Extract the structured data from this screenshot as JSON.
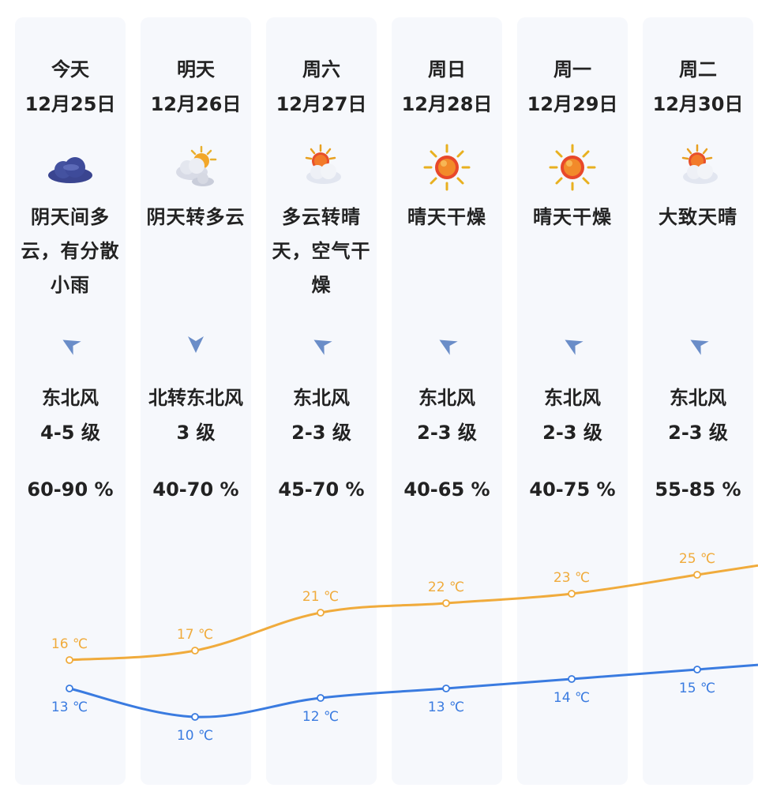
{
  "days": [
    {
      "name": "今天",
      "date": "12月25日",
      "icon": "overcast-cloud-icon",
      "condition": "阴天间多云，有分散小雨",
      "wind_icon": "wind-direction-arrow-icon",
      "wind_dir": "东北风",
      "wind_level": "4-5 级",
      "humidity": "60-90 %",
      "high_label": "16 ℃",
      "low_label": "13 ℃"
    },
    {
      "name": "明天",
      "date": "12月26日",
      "icon": "partly-cloudy-icon",
      "condition": "阴天转多云",
      "wind_icon": "wind-direction-arrow-icon",
      "wind_dir": "北转东北风",
      "wind_level": "3 级",
      "humidity": "40-70 %",
      "high_label": "17 ℃",
      "low_label": "10 ℃"
    },
    {
      "name": "周六",
      "date": "12月27日",
      "icon": "sun-behind-cloud-icon",
      "condition": "多云转晴天，空气干燥",
      "wind_icon": "wind-direction-arrow-icon",
      "wind_dir": "东北风",
      "wind_level": "2-3 级",
      "humidity": "45-70 %",
      "high_label": "21 ℃",
      "low_label": "12 ℃"
    },
    {
      "name": "周日",
      "date": "12月28日",
      "icon": "sunny-icon",
      "condition": "晴天干燥",
      "wind_icon": "wind-direction-arrow-icon",
      "wind_dir": "东北风",
      "wind_level": "2-3 级",
      "humidity": "40-65 %",
      "high_label": "22 ℃",
      "low_label": "13 ℃"
    },
    {
      "name": "周一",
      "date": "12月29日",
      "icon": "sunny-icon",
      "condition": "晴天干燥",
      "wind_icon": "wind-direction-arrow-icon",
      "wind_dir": "东北风",
      "wind_level": "2-3 级",
      "humidity": "40-75 %",
      "high_label": "23 ℃",
      "low_label": "14 ℃"
    },
    {
      "name": "周二",
      "date": "12月30日",
      "icon": "sun-behind-cloud-icon",
      "condition": "大致天晴",
      "wind_icon": "wind-direction-arrow-icon",
      "wind_dir": "东北风",
      "wind_level": "2-3 级",
      "humidity": "55-85 %",
      "high_label": "25 ℃",
      "low_label": "15 ℃"
    }
  ],
  "chart_data": {
    "type": "line",
    "categories": [
      "12月25日",
      "12月26日",
      "12月27日",
      "12月28日",
      "12月29日",
      "12月30日"
    ],
    "series": [
      {
        "values": [
          16,
          17,
          21,
          22,
          23,
          25
        ],
        "color": "#f0ab3c"
      },
      {
        "values": [
          13,
          10,
          12,
          13,
          14,
          15
        ],
        "color": "#3a7be0"
      }
    ],
    "unit": "℃"
  },
  "colors": {
    "high": "#f0ab3c",
    "low": "#3a7be0",
    "column_bg": "#f6f8fc",
    "text": "#222222"
  }
}
